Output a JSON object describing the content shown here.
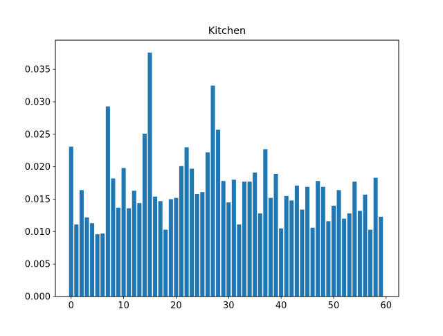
{
  "chart_data": {
    "type": "bar",
    "title": "Kitchen",
    "xlabel": "",
    "ylabel": "",
    "x": [
      0,
      1,
      2,
      3,
      4,
      5,
      6,
      7,
      8,
      9,
      10,
      11,
      12,
      13,
      14,
      15,
      16,
      17,
      18,
      19,
      20,
      21,
      22,
      23,
      24,
      25,
      26,
      27,
      28,
      29,
      30,
      31,
      32,
      33,
      34,
      35,
      36,
      37,
      38,
      39,
      40,
      41,
      42,
      43,
      44,
      45,
      46,
      47,
      48,
      49,
      50,
      51,
      52,
      53,
      54,
      55,
      56,
      57,
      58,
      59
    ],
    "values": [
      0.0231,
      0.0111,
      0.0164,
      0.0122,
      0.0113,
      0.0096,
      0.0097,
      0.0293,
      0.0182,
      0.0137,
      0.0198,
      0.0136,
      0.0163,
      0.0144,
      0.0251,
      0.0376,
      0.0154,
      0.0147,
      0.0103,
      0.015,
      0.0152,
      0.0201,
      0.023,
      0.0197,
      0.0158,
      0.0161,
      0.0222,
      0.0325,
      0.0257,
      0.0178,
      0.0145,
      0.018,
      0.0111,
      0.0177,
      0.0177,
      0.0191,
      0.0128,
      0.0227,
      0.0152,
      0.0189,
      0.0105,
      0.0155,
      0.0148,
      0.0171,
      0.0134,
      0.0169,
      0.0106,
      0.0178,
      0.0169,
      0.0116,
      0.014,
      0.0164,
      0.012,
      0.0128,
      0.0177,
      0.0132,
      0.0157,
      0.0103,
      0.0183,
      0.0123
    ],
    "xlim": [
      -3,
      62.4
    ],
    "ylim": [
      0,
      0.0395
    ],
    "xticks": [
      0,
      10,
      20,
      30,
      40,
      50,
      60
    ],
    "xtick_labels": [
      "0",
      "10",
      "20",
      "30",
      "40",
      "50",
      "60"
    ],
    "yticks": [
      0,
      0.005,
      0.01,
      0.015,
      0.02,
      0.025,
      0.03,
      0.035
    ],
    "ytick_labels": [
      "0.000",
      "0.005",
      "0.010",
      "0.015",
      "0.020",
      "0.025",
      "0.030",
      "0.035"
    ],
    "bar_color": "#1f77b4",
    "grid": false,
    "legend": "none"
  }
}
